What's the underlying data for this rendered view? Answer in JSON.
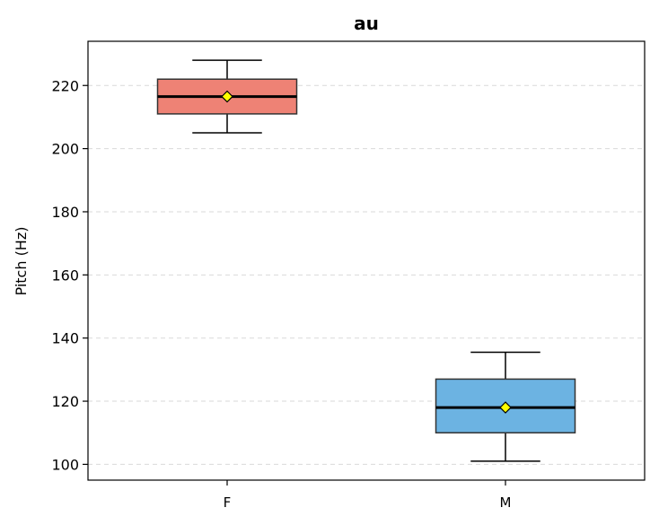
{
  "chart_data": {
    "type": "box",
    "title": "au",
    "xlabel": "",
    "ylabel": "Pitch (Hz)",
    "ylim": [
      95,
      234
    ],
    "yticks": [
      100,
      120,
      140,
      160,
      180,
      200,
      220
    ],
    "grid": "horizontal, dashed",
    "categories": [
      "F",
      "M"
    ],
    "boxes": [
      {
        "category": "F",
        "whisker_low": 205,
        "q1": 211,
        "median": 216.5,
        "mean": 216.5,
        "q3": 222,
        "whisker_high": 228,
        "color": "#ee8275"
      },
      {
        "category": "M",
        "whisker_low": 101,
        "q1": 110,
        "median": 118,
        "mean": 118,
        "q3": 127,
        "whisker_high": 135.5,
        "color": "#6cb3e2"
      }
    ],
    "mean_marker": "yellow diamond"
  }
}
